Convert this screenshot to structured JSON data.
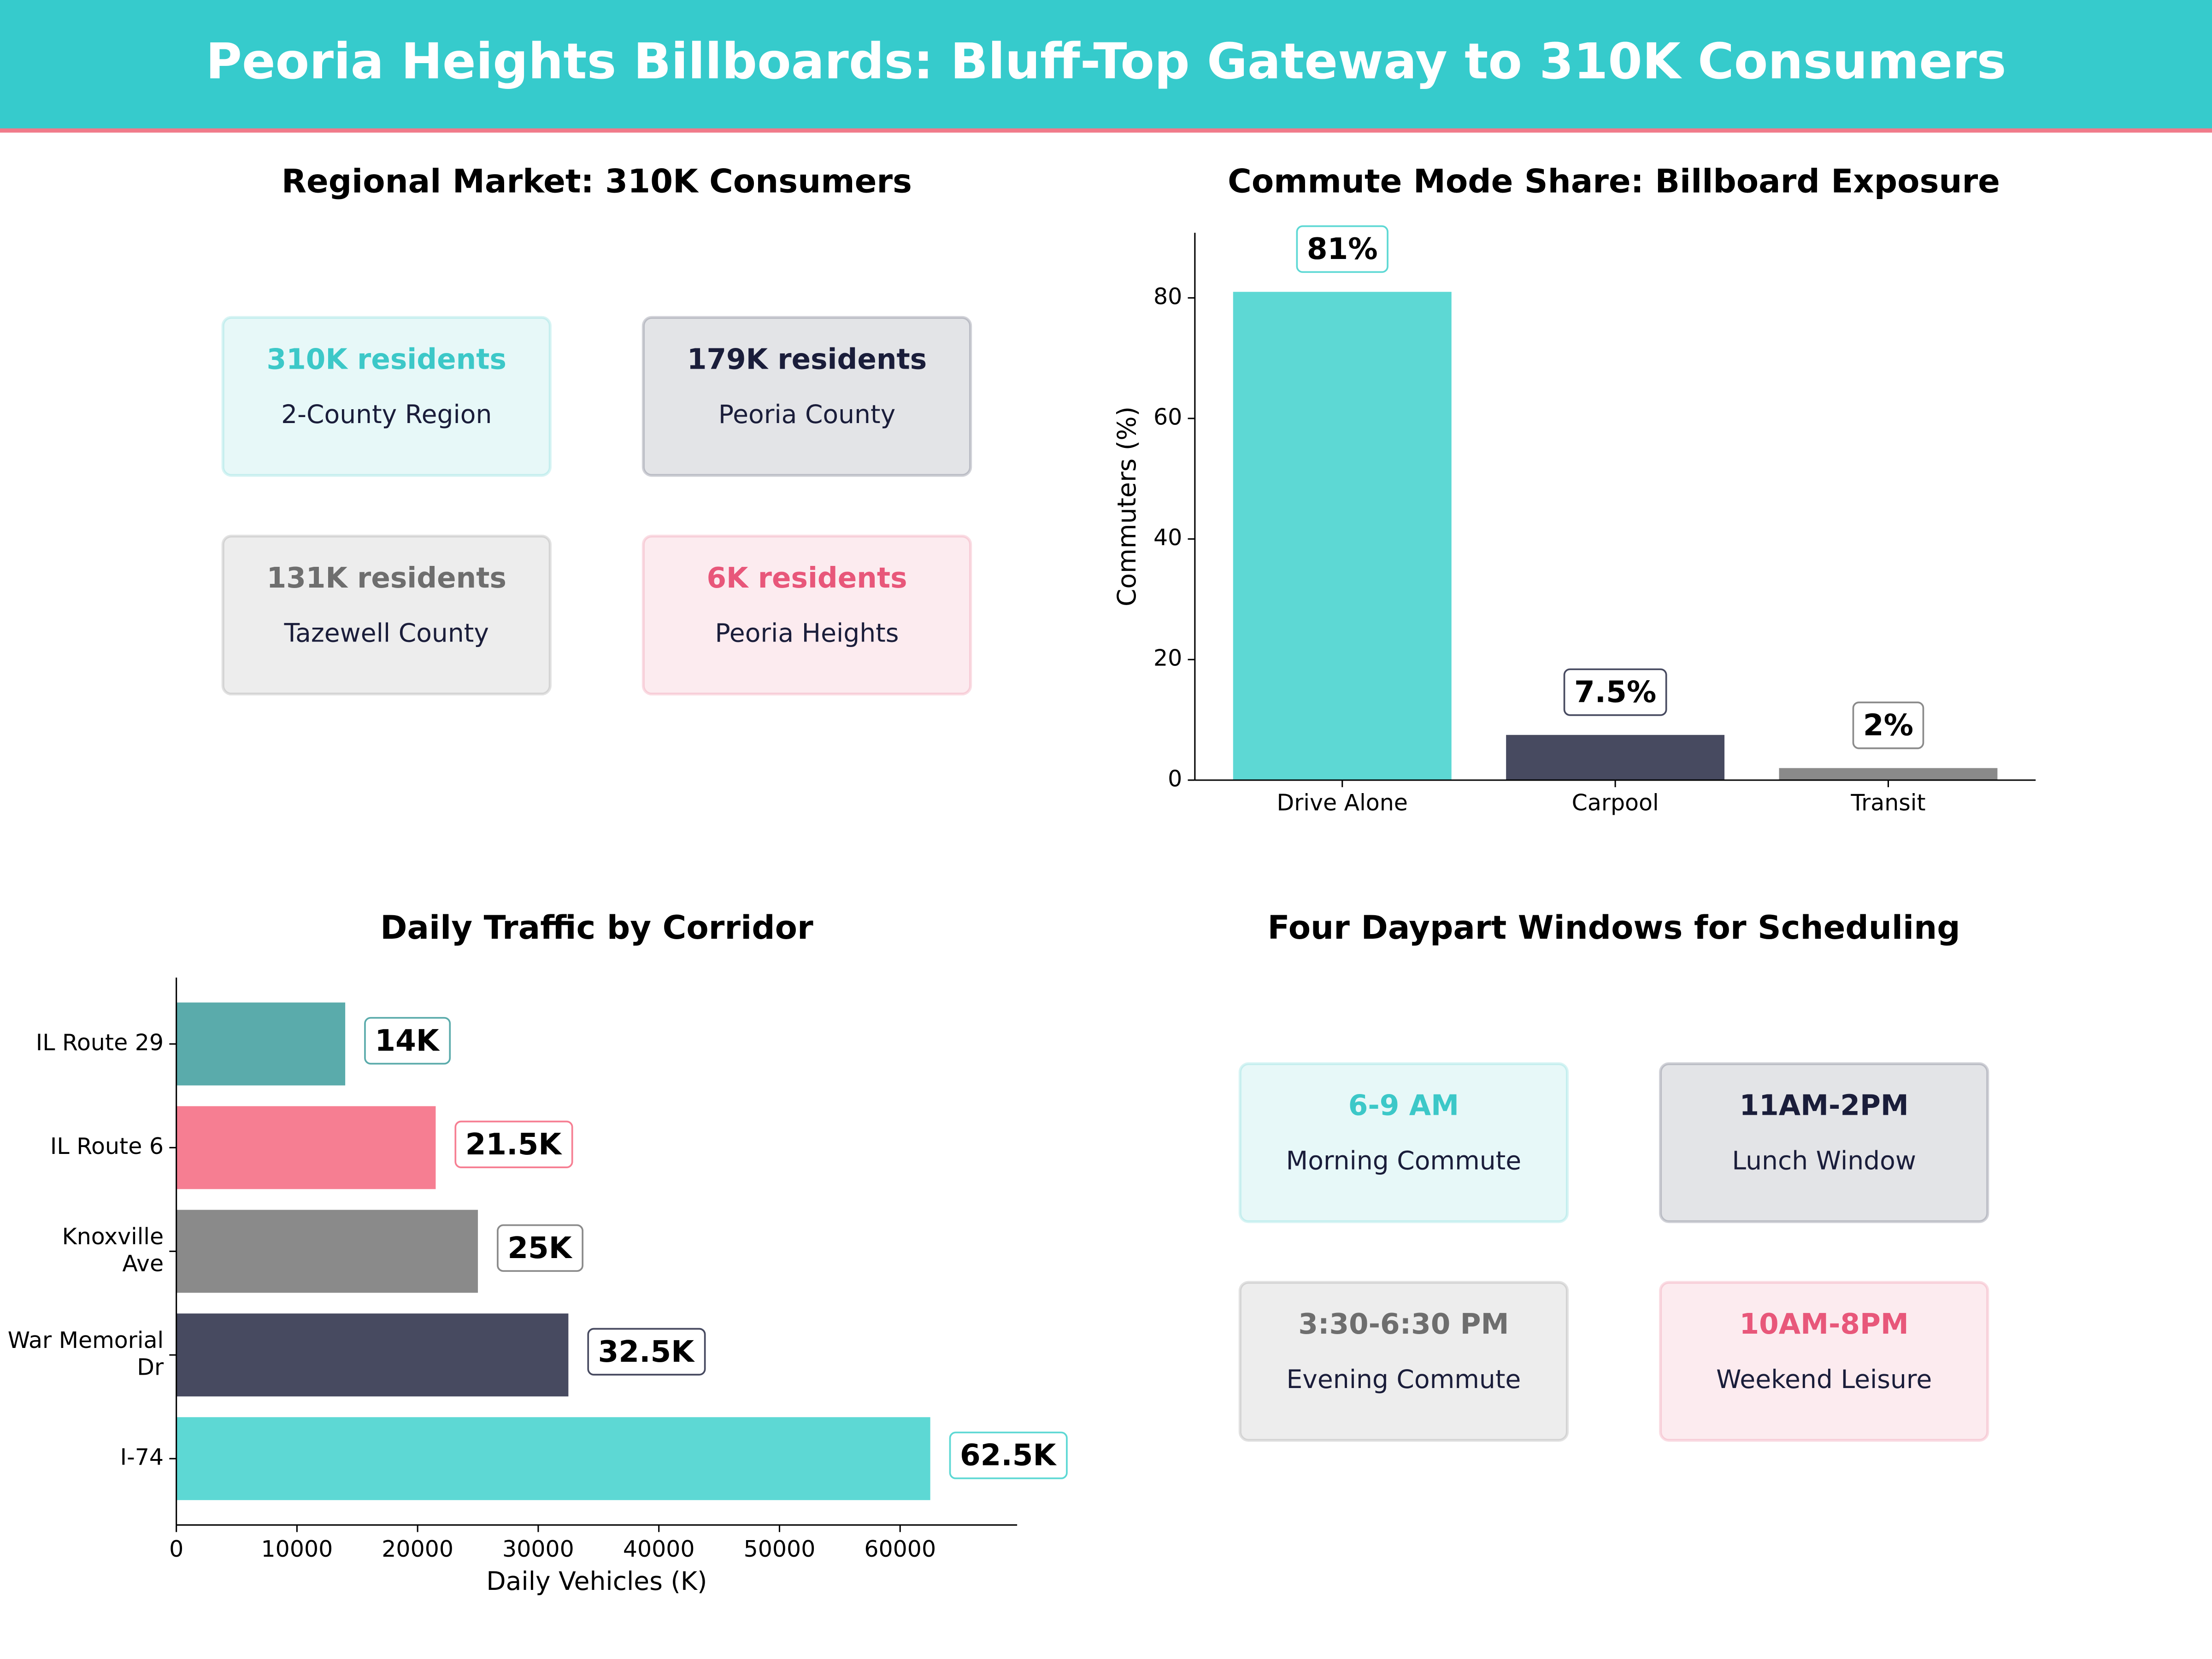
{
  "title": "Peoria Heights Billboards: Bluff-Top Gateway to 310K Consumers",
  "market": {
    "title": "Regional Market: 310K Consumers",
    "cards": [
      {
        "value": "310K residents",
        "label": "2-County Region",
        "color": "#3cc8c8"
      },
      {
        "value": "179K residents",
        "label": "Peoria County",
        "color": "#1a1d3a"
      },
      {
        "value": "131K residents",
        "label": "Tazewell County",
        "color": "#6e6e6e"
      },
      {
        "value": "6K residents",
        "label": "Peoria Heights",
        "color": "#e8577a"
      }
    ]
  },
  "chart_data": [
    {
      "type": "bar",
      "title": "Commute Mode Share: Billboard Exposure",
      "ylabel": "Commuters (%)",
      "categories": [
        "Drive Alone",
        "Carpool",
        "Transit"
      ],
      "values": [
        81,
        7.5,
        2
      ],
      "value_labels": [
        "81%",
        "7.5%",
        "2%"
      ],
      "colors": [
        "#5dd8d4",
        "#474a60",
        "#8a8a8a"
      ],
      "ylim": [
        0,
        90.8
      ],
      "yticks": [
        0,
        20,
        40,
        60,
        80
      ]
    },
    {
      "type": "barh",
      "title": "Daily Traffic by Corridor",
      "xlabel": "Daily Vehicles (K)",
      "categories": [
        "I-74",
        "War Memorial\nDr",
        "Knoxville\nAve",
        "IL Route 6",
        "IL Route 29"
      ],
      "values": [
        62500,
        32500,
        25000,
        21500,
        14000
      ],
      "value_labels": [
        "62.5K",
        "32.5K",
        "25K",
        "21.5K",
        "14K"
      ],
      "colors": [
        "#5dd8d4",
        "#474a60",
        "#8a8a8a",
        "#f67e92",
        "#5aabab"
      ],
      "xlim": [
        0,
        69700
      ],
      "xticks": [
        0,
        10000,
        20000,
        30000,
        40000,
        50000,
        60000
      ]
    }
  ],
  "dayparts": {
    "title": "Four Daypart Windows for Scheduling",
    "cards": [
      {
        "value": "6-9 AM",
        "label": "Morning Commute",
        "color": "#3cc8c8"
      },
      {
        "value": "11AM-2PM",
        "label": "Lunch Window",
        "color": "#1a1d3a"
      },
      {
        "value": "3:30-6:30 PM",
        "label": "Evening Commute",
        "color": "#6e6e6e"
      },
      {
        "value": "10AM-8PM",
        "label": "Weekend Leisure",
        "color": "#e8577a"
      }
    ]
  }
}
